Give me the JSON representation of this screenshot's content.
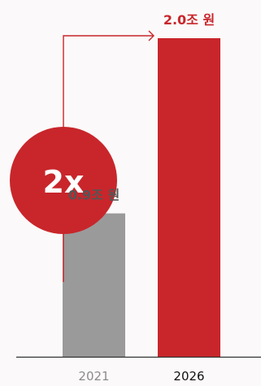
{
  "chart_data": {
    "type": "bar",
    "categories": [
      "2021",
      "2026"
    ],
    "values": [
      0.9,
      2.0
    ],
    "value_labels": [
      "0.9조 원",
      "2.0조 원"
    ],
    "ylim": [
      0,
      2.0
    ],
    "colors": {
      "bar_2021": "#9a9a9a",
      "bar_2026": "#c8262b",
      "accent": "#c8262b",
      "axis": "#333333",
      "tick_2021": "#8c8c8c",
      "tick_2026": "#111111",
      "label_2021": "#555555"
    },
    "annotation": {
      "text": "2x",
      "style": "circle-badge-with-arrow",
      "icon": "arrow-right-icon"
    },
    "grid": false
  }
}
